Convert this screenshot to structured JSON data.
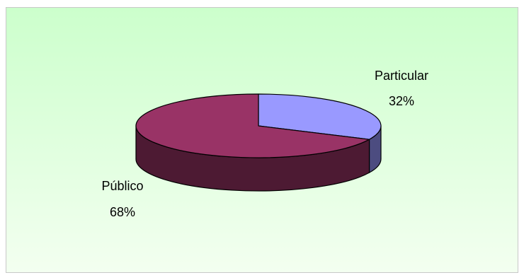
{
  "chart_data": {
    "type": "pie",
    "title": "",
    "categories": [
      "Particular",
      "Público"
    ],
    "values": [
      32,
      68
    ],
    "value_labels": [
      "32%",
      "68%"
    ],
    "colors": [
      "#9999ff",
      "#993366"
    ],
    "side_colors": [
      "#4c4c80",
      "#4d1a33"
    ],
    "style": "3d-pie",
    "legend": "none"
  },
  "colors": {
    "background_top": "#ccffcc",
    "background_bottom": "#f3fff0",
    "outline": "#000000"
  }
}
